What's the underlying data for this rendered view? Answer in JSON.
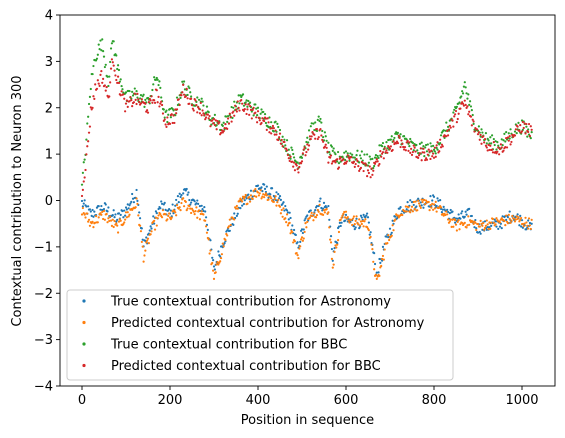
{
  "chart_data": {
    "type": "scatter",
    "xlabel": "Position in sequence",
    "ylabel": "Contextual contribution to Neuron 300",
    "xlim": [
      -50,
      1075
    ],
    "ylim": [
      -4,
      4
    ],
    "xticks": [
      "0",
      "200",
      "400",
      "600",
      "800",
      "1000"
    ],
    "yticks": [
      "4",
      "3",
      "2",
      "1",
      "0",
      "−1",
      "−2",
      "−3",
      "−4"
    ],
    "legend_position": "lower-left",
    "series": [
      {
        "name": "True contextual contribution for Astronomy",
        "color": "#1f77b4",
        "anchors": [
          [
            0,
            -0.05
          ],
          [
            20,
            -0.3
          ],
          [
            50,
            -0.15
          ],
          [
            80,
            -0.4
          ],
          [
            100,
            -0.2
          ],
          [
            125,
            0.2
          ],
          [
            140,
            -1.0
          ],
          [
            160,
            -0.5
          ],
          [
            180,
            -0.1
          ],
          [
            200,
            -0.3
          ],
          [
            230,
            0.2
          ],
          [
            260,
            -0.1
          ],
          [
            280,
            -0.2
          ],
          [
            300,
            -1.5
          ],
          [
            320,
            -0.9
          ],
          [
            340,
            -0.5
          ],
          [
            360,
            -0.1
          ],
          [
            400,
            0.3
          ],
          [
            440,
            0.1
          ],
          [
            470,
            -0.3
          ],
          [
            490,
            -1.0
          ],
          [
            510,
            -0.4
          ],
          [
            540,
            -0.05
          ],
          [
            560,
            -0.2
          ],
          [
            570,
            -1.2
          ],
          [
            590,
            -0.4
          ],
          [
            620,
            -0.5
          ],
          [
            650,
            -0.4
          ],
          [
            670,
            -1.6
          ],
          [
            690,
            -0.9
          ],
          [
            720,
            -0.2
          ],
          [
            760,
            -0.05
          ],
          [
            800,
            0.0
          ],
          [
            850,
            -0.4
          ],
          [
            880,
            -0.3
          ],
          [
            900,
            -0.6
          ],
          [
            950,
            -0.5
          ],
          [
            980,
            -0.3
          ],
          [
            1020,
            -0.6
          ]
        ],
        "spread": 0.13
      },
      {
        "name": "Predicted contextual contribution for Astronomy",
        "color": "#ff7f0e",
        "anchors": [
          [
            0,
            -0.2
          ],
          [
            20,
            -0.5
          ],
          [
            50,
            -0.3
          ],
          [
            80,
            -0.6
          ],
          [
            100,
            -0.35
          ],
          [
            125,
            -0.05
          ],
          [
            140,
            -1.2
          ],
          [
            160,
            -0.6
          ],
          [
            180,
            -0.3
          ],
          [
            200,
            -0.4
          ],
          [
            230,
            -0.05
          ],
          [
            260,
            -0.25
          ],
          [
            280,
            -0.4
          ],
          [
            300,
            -1.7
          ],
          [
            320,
            -1.0
          ],
          [
            340,
            -0.4
          ],
          [
            360,
            -0.05
          ],
          [
            400,
            0.2
          ],
          [
            440,
            0.0
          ],
          [
            470,
            -0.45
          ],
          [
            490,
            -1.2
          ],
          [
            510,
            -0.5
          ],
          [
            540,
            -0.15
          ],
          [
            560,
            -0.3
          ],
          [
            570,
            -1.4
          ],
          [
            590,
            -0.3
          ],
          [
            620,
            -0.45
          ],
          [
            650,
            -0.5
          ],
          [
            670,
            -1.8
          ],
          [
            690,
            -1.0
          ],
          [
            720,
            -0.25
          ],
          [
            760,
            -0.1
          ],
          [
            800,
            -0.1
          ],
          [
            850,
            -0.55
          ],
          [
            880,
            -0.45
          ],
          [
            900,
            -0.55
          ],
          [
            950,
            -0.45
          ],
          [
            980,
            -0.4
          ],
          [
            1020,
            -0.5
          ]
        ],
        "spread": 0.12
      },
      {
        "name": "True contextual contribution for BBC",
        "color": "#2ca02c",
        "anchors": [
          [
            0,
            0.3
          ],
          [
            10,
            1.3
          ],
          [
            20,
            2.5
          ],
          [
            30,
            3.1
          ],
          [
            45,
            3.4
          ],
          [
            60,
            2.6
          ],
          [
            70,
            3.5
          ],
          [
            80,
            2.9
          ],
          [
            100,
            2.2
          ],
          [
            120,
            2.3
          ],
          [
            150,
            2.1
          ],
          [
            170,
            2.7
          ],
          [
            190,
            1.8
          ],
          [
            210,
            1.9
          ],
          [
            230,
            2.5
          ],
          [
            250,
            2.2
          ],
          [
            270,
            2.1
          ],
          [
            290,
            1.8
          ],
          [
            320,
            1.6
          ],
          [
            340,
            1.9
          ],
          [
            360,
            2.2
          ],
          [
            400,
            1.9
          ],
          [
            440,
            1.6
          ],
          [
            470,
            1.1
          ],
          [
            490,
            0.8
          ],
          [
            520,
            1.5
          ],
          [
            540,
            1.7
          ],
          [
            560,
            1.1
          ],
          [
            580,
            0.9
          ],
          [
            600,
            1.0
          ],
          [
            640,
            0.9
          ],
          [
            660,
            0.8
          ],
          [
            680,
            1.1
          ],
          [
            720,
            1.4
          ],
          [
            760,
            1.1
          ],
          [
            800,
            1.1
          ],
          [
            820,
            1.4
          ],
          [
            850,
            1.9
          ],
          [
            870,
            2.5
          ],
          [
            890,
            1.7
          ],
          [
            920,
            1.3
          ],
          [
            950,
            1.2
          ],
          [
            980,
            1.5
          ],
          [
            1000,
            1.6
          ],
          [
            1020,
            1.4
          ]
        ],
        "spread": 0.15
      },
      {
        "name": "Predicted contextual contribution for BBC",
        "color": "#d62728",
        "anchors": [
          [
            0,
            0.2
          ],
          [
            10,
            0.9
          ],
          [
            20,
            1.9
          ],
          [
            30,
            2.4
          ],
          [
            45,
            2.7
          ],
          [
            60,
            2.2
          ],
          [
            70,
            3.1
          ],
          [
            80,
            2.6
          ],
          [
            100,
            2.0
          ],
          [
            120,
            2.2
          ],
          [
            150,
            2.0
          ],
          [
            170,
            2.3
          ],
          [
            190,
            1.7
          ],
          [
            210,
            1.8
          ],
          [
            230,
            2.4
          ],
          [
            250,
            2.1
          ],
          [
            270,
            2.0
          ],
          [
            290,
            1.7
          ],
          [
            320,
            1.5
          ],
          [
            340,
            1.8
          ],
          [
            360,
            2.1
          ],
          [
            400,
            1.8
          ],
          [
            440,
            1.5
          ],
          [
            470,
            1.0
          ],
          [
            490,
            0.7
          ],
          [
            520,
            1.3
          ],
          [
            540,
            1.5
          ],
          [
            560,
            0.9
          ],
          [
            580,
            0.8
          ],
          [
            600,
            0.9
          ],
          [
            640,
            0.7
          ],
          [
            660,
            0.6
          ],
          [
            680,
            1.0
          ],
          [
            720,
            1.3
          ],
          [
            760,
            1.0
          ],
          [
            800,
            1.0
          ],
          [
            820,
            1.3
          ],
          [
            850,
            1.8
          ],
          [
            870,
            2.1
          ],
          [
            890,
            1.6
          ],
          [
            920,
            1.2
          ],
          [
            950,
            1.1
          ],
          [
            980,
            1.4
          ],
          [
            1000,
            1.6
          ],
          [
            1020,
            1.5
          ]
        ],
        "spread": 0.14
      }
    ]
  }
}
